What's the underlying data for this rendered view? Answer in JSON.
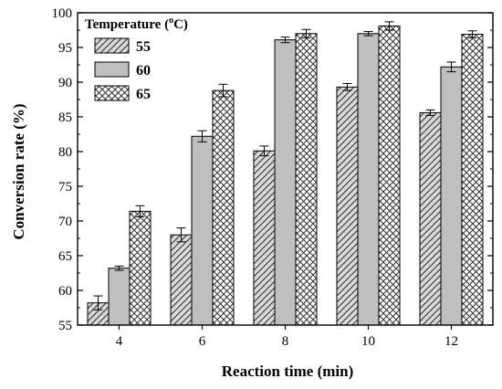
{
  "chart_data": {
    "type": "bar",
    "xlabel": "Reaction time (min)",
    "ylabel": "Conversion rate (%)",
    "categories": [
      "4",
      "6",
      "8",
      "10",
      "12"
    ],
    "ylim": [
      55,
      100
    ],
    "yticks": [
      55,
      60,
      65,
      70,
      75,
      80,
      85,
      90,
      95,
      100
    ],
    "legend": {
      "title_prefix": "Temperature (",
      "title_sup": "o",
      "title_suffix": "C)",
      "position": "top-left"
    },
    "series": [
      {
        "name": "55",
        "pattern": "diagonal-hatch",
        "color": "#555555",
        "values": [
          58.2,
          68.0,
          80.1,
          89.3,
          85.6
        ],
        "errors": [
          1.0,
          1.0,
          0.7,
          0.5,
          0.4
        ]
      },
      {
        "name": "60",
        "pattern": "solid",
        "color": "#bfbfbf",
        "values": [
          63.2,
          82.2,
          96.1,
          97.0,
          92.2
        ],
        "errors": [
          0.3,
          0.8,
          0.4,
          0.3,
          0.7
        ]
      },
      {
        "name": "65",
        "pattern": "crosshatch",
        "color": "#555555",
        "values": [
          71.4,
          88.8,
          97.0,
          98.1,
          96.9
        ],
        "errors": [
          0.8,
          0.9,
          0.6,
          0.6,
          0.5
        ]
      }
    ],
    "grid": false
  }
}
